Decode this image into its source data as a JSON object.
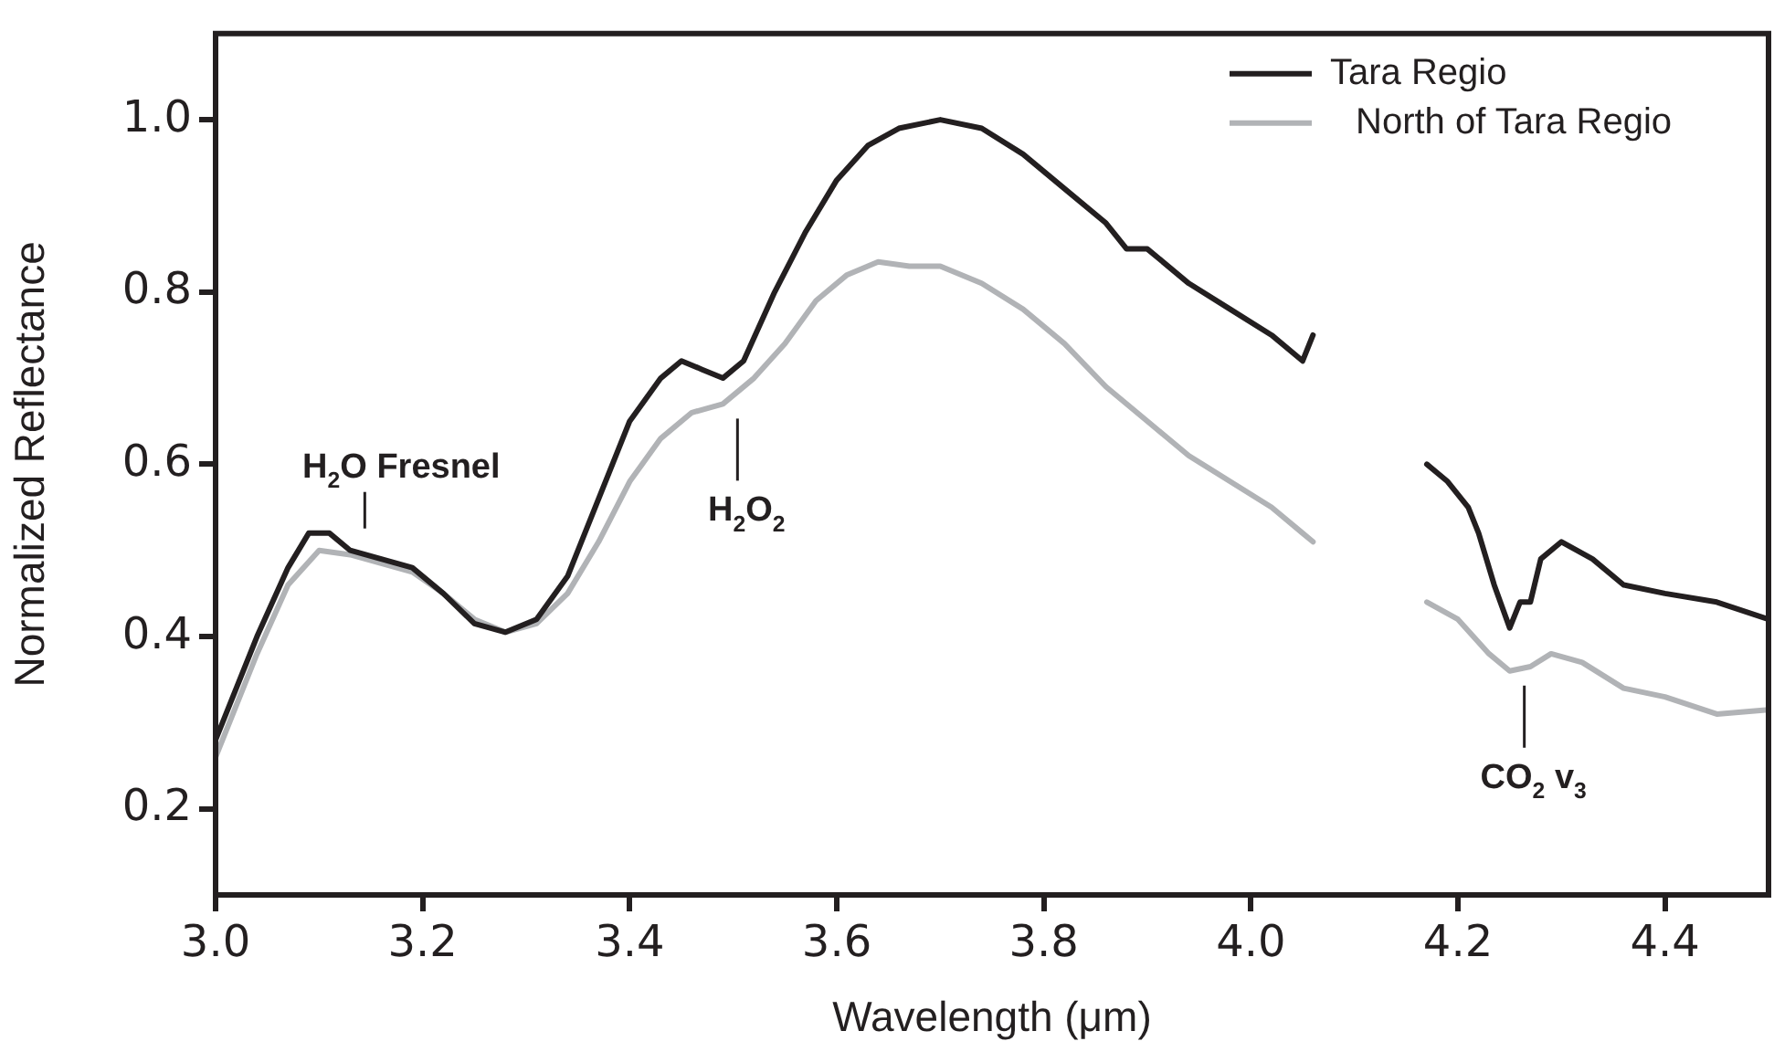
{
  "chart_data": {
    "type": "line",
    "xlabel": "Wavelength (μm)",
    "ylabel": "Normalized Reflectance",
    "xlim": [
      3.0,
      4.5
    ],
    "xticks": [
      {
        "value": 3.0,
        "label": "3.0"
      },
      3.2,
      3.4,
      3.6,
      3.8,
      {
        "value": 4.0,
        "label": "4.0"
      },
      4.2,
      4.4
    ],
    "ylim": [
      0.1,
      1.1
    ],
    "yticks": [
      0.2,
      0.4,
      0.6,
      0.8,
      {
        "value": 1.0,
        "label": "1.0"
      }
    ],
    "grid": false,
    "legend": "top right",
    "marker": "none",
    "line_style": "solid",
    "series": [
      {
        "name": "Tara Regio",
        "color": "#231f20",
        "x": [
          3.0,
          3.04,
          3.07,
          3.09,
          3.11,
          3.13,
          3.16,
          3.19,
          3.22,
          3.25,
          3.28,
          3.31,
          3.34,
          3.37,
          3.4,
          3.43,
          3.45,
          3.47,
          3.49,
          3.51,
          3.54,
          3.57,
          3.6,
          3.63,
          3.66,
          3.7,
          3.74,
          3.78,
          3.82,
          3.86,
          3.88,
          3.9,
          3.94,
          3.98,
          4.02,
          4.05,
          4.06,
          4.1,
          4.17,
          4.19,
          4.21,
          4.22,
          4.235,
          4.25,
          4.26,
          4.27,
          4.28,
          4.3,
          4.33,
          4.36,
          4.4,
          4.45,
          4.5
        ],
        "values": [
          0.28,
          0.4,
          0.48,
          0.52,
          0.52,
          0.5,
          0.49,
          0.48,
          0.45,
          0.415,
          0.405,
          0.42,
          0.47,
          0.56,
          0.65,
          0.7,
          0.72,
          0.71,
          0.7,
          0.72,
          0.8,
          0.87,
          0.93,
          0.97,
          0.99,
          1.0,
          0.99,
          0.96,
          0.92,
          0.88,
          0.85,
          0.85,
          0.81,
          0.78,
          0.75,
          0.72,
          0.75,
          null,
          0.6,
          0.58,
          0.55,
          0.52,
          0.46,
          0.41,
          0.44,
          0.44,
          0.49,
          0.51,
          0.49,
          0.46,
          0.45,
          0.44,
          0.42
        ]
      },
      {
        "name": "North of Tara Regio",
        "color": "#b1b3b6",
        "x": [
          3.0,
          3.04,
          3.07,
          3.1,
          3.13,
          3.16,
          3.19,
          3.22,
          3.25,
          3.28,
          3.31,
          3.34,
          3.37,
          3.4,
          3.43,
          3.46,
          3.49,
          3.52,
          3.55,
          3.58,
          3.61,
          3.64,
          3.67,
          3.7,
          3.74,
          3.78,
          3.82,
          3.86,
          3.9,
          3.94,
          3.98,
          4.02,
          4.05,
          4.06,
          4.1,
          4.17,
          4.2,
          4.23,
          4.25,
          4.27,
          4.29,
          4.32,
          4.36,
          4.4,
          4.45,
          4.5
        ],
        "values": [
          0.26,
          0.38,
          0.46,
          0.5,
          0.495,
          0.485,
          0.475,
          0.45,
          0.42,
          0.405,
          0.415,
          0.45,
          0.51,
          0.58,
          0.63,
          0.66,
          0.67,
          0.7,
          0.74,
          0.79,
          0.82,
          0.835,
          0.83,
          0.83,
          0.81,
          0.78,
          0.74,
          0.69,
          0.65,
          0.61,
          0.58,
          0.55,
          0.52,
          0.51,
          null,
          0.44,
          0.42,
          0.38,
          0.36,
          0.365,
          0.38,
          0.37,
          0.34,
          0.33,
          0.31,
          0.315
        ]
      }
    ],
    "annotations": [
      {
        "text": "H$_{2}$O Fresnel",
        "x": 3.13,
        "y": 0.5
      },
      {
        "text": "H$_{2}$O$_{2}$",
        "x": 3.49,
        "y": 0.67
      },
      {
        "text": "CO$_{2}$ v$_{3}$",
        "x": 4.25,
        "y": 0.36
      }
    ]
  }
}
